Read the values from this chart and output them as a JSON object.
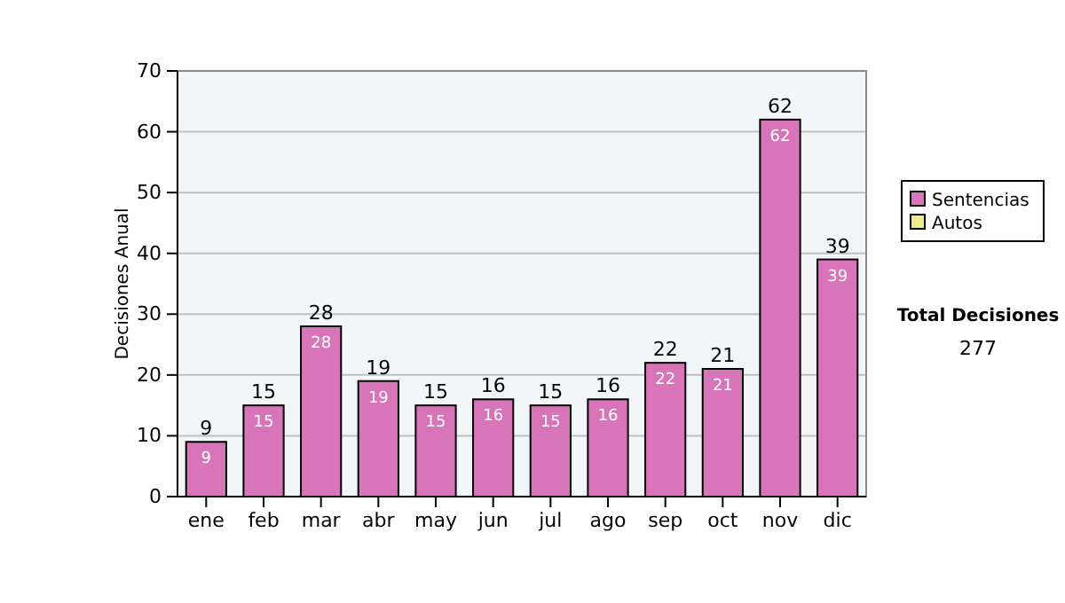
{
  "chart_data": {
    "type": "bar",
    "stacked": true,
    "ylabel": "Decisiones Anual",
    "categories": [
      "ene",
      "feb",
      "mar",
      "abr",
      "may",
      "jun",
      "jul",
      "ago",
      "sep",
      "oct",
      "nov",
      "dic"
    ],
    "series": [
      {
        "name": "Sentencias",
        "color": "#d775b8",
        "values": [
          9,
          15,
          28,
          19,
          15,
          16,
          15,
          16,
          22,
          21,
          62,
          39
        ],
        "value_labels": [
          "9",
          "15",
          "28",
          "19",
          "15",
          "16",
          "15",
          "16",
          "22",
          "21",
          "62",
          "39"
        ]
      },
      {
        "name": "Autos",
        "color": "#eeee88",
        "values": [
          0,
          0,
          0,
          0,
          0,
          0,
          0,
          0,
          0,
          0,
          0,
          0
        ]
      }
    ],
    "totals": [
      "9",
      "15",
      "28",
      "19",
      "15",
      "16",
      "15",
      "16",
      "22",
      "21",
      "62",
      "39"
    ],
    "ylim": [
      0,
      70
    ],
    "yticks": [
      0,
      10,
      20,
      30,
      40,
      50,
      60,
      70
    ],
    "grid": "y",
    "legend": "right",
    "annotations": [
      "Total Decisiones",
      "277"
    ]
  }
}
